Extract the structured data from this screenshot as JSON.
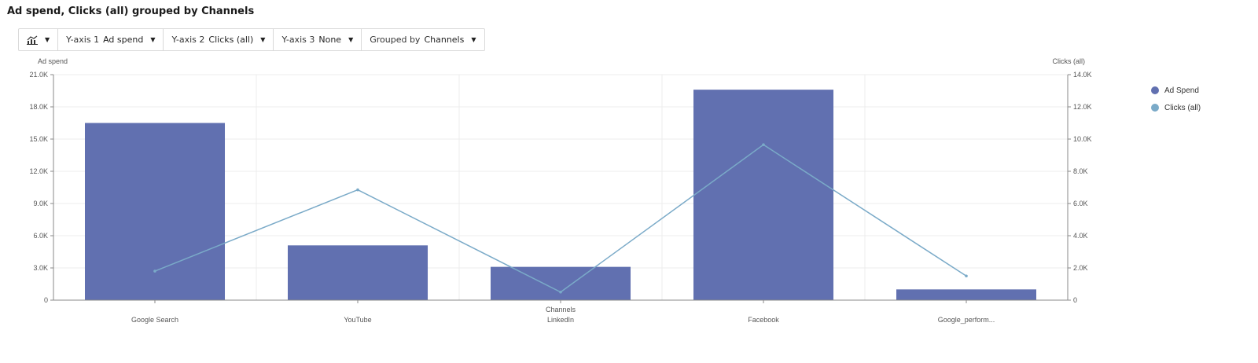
{
  "page": {
    "title": "Ad spend, Clicks (all) grouped by Channels"
  },
  "toolbar": {
    "chart_type_icon": "chart-type-icon",
    "yaxis1_label": "Y-axis 1",
    "yaxis1_value": "Ad spend",
    "yaxis2_label": "Y-axis 2",
    "yaxis2_value": "Clicks (all)",
    "yaxis3_label": "Y-axis 3",
    "yaxis3_value": "None",
    "group_label": "Grouped by",
    "group_value": "Channels"
  },
  "legend": {
    "items": [
      {
        "label": "Ad Spend",
        "color": "#6170b0"
      },
      {
        "label": "Clicks (all)",
        "color": "#7aaac8"
      }
    ]
  },
  "chart_data": {
    "type": "bar",
    "title": "",
    "xlabel": "Channels",
    "ylabel": "Ad spend",
    "y2label": "Clicks (all)",
    "categories": [
      "Google Search",
      "YouTube",
      "LinkedIn",
      "Facebook",
      "Google_perform..."
    ],
    "series": [
      {
        "name": "Ad Spend",
        "type": "bar",
        "axis": "left",
        "color": "#6170b0",
        "values": [
          16500,
          5100,
          3100,
          19600,
          1000
        ]
      },
      {
        "name": "Clicks (all)",
        "type": "line",
        "axis": "right",
        "color": "#7aaac8",
        "values": [
          1800,
          6850,
          500,
          9650,
          1500
        ]
      }
    ],
    "ylim": [
      0,
      21000
    ],
    "y2lim": [
      0,
      14000
    ],
    "yticks": [
      "0",
      "3.0K",
      "6.0K",
      "9.0K",
      "12.0K",
      "15.0K",
      "18.0K",
      "21.0K"
    ],
    "y2ticks": [
      "0",
      "2.0K",
      "4.0K",
      "6.0K",
      "8.0K",
      "10.0K",
      "12.0K",
      "14.0K"
    ],
    "grid": true,
    "legend_position": "right"
  }
}
